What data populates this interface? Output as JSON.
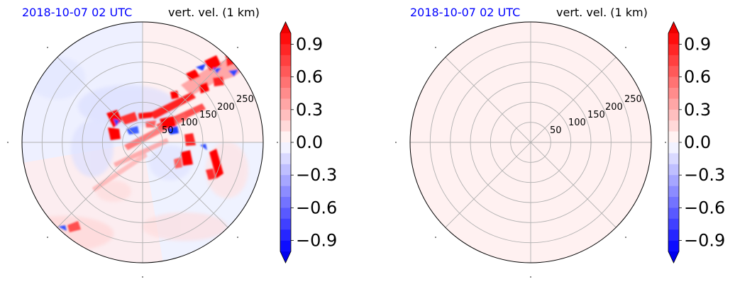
{
  "panels": [
    {
      "time_label": "2018-10-07 02 UTC",
      "field_label": "vert. vel. (1 km)",
      "state": "storm structure",
      "background_value": 0.03
    },
    {
      "time_label": "2018-10-07 02 UTC",
      "field_label": "vert. vel. (1 km)",
      "state": "uniform field",
      "background_value": 0.03
    }
  ],
  "colors": {
    "time_label": "#0000ff",
    "field_label": "#000000",
    "colormap_low": "#0000ff",
    "colormap_mid": "#ffffff",
    "colormap_high": "#ff0000",
    "grid": "#b0b0b0"
  },
  "chart_data": [
    {
      "type": "heatmap",
      "projection": "polar",
      "radial_ticks": [
        "50",
        "100",
        "150",
        "200",
        "250"
      ],
      "radial_values": [
        50,
        100,
        150,
        200,
        250
      ],
      "radial_max": 300,
      "angular_grid_deg": [
        0,
        45,
        90,
        135,
        180,
        225,
        270,
        315
      ],
      "colorbar": {
        "ticks": [
          "−0.9",
          "−0.6",
          "−0.3",
          "0.0",
          "0.3",
          "0.6",
          "0.9"
        ],
        "tick_values": [
          -0.9,
          -0.6,
          -0.3,
          0.0,
          0.3,
          0.6,
          0.9
        ],
        "vmin": -1.0,
        "vmax": 1.0,
        "levels": 20,
        "extend": "both"
      },
      "features": [
        {
          "r": 70,
          "theta_deg": 160,
          "value": 0.9
        },
        {
          "r": 40,
          "theta_deg": 40,
          "value": 0.8
        },
        {
          "r": 110,
          "theta_deg": 52,
          "value": 0.95
        },
        {
          "r": 165,
          "theta_deg": 55,
          "value": 0.9
        },
        {
          "r": 175,
          "theta_deg": 48,
          "value": -0.6
        },
        {
          "r": 120,
          "theta_deg": 20,
          "value": 0.7
        },
        {
          "r": 110,
          "theta_deg": -35,
          "value": 0.9
        },
        {
          "r": 160,
          "theta_deg": -20,
          "value": 0.8
        },
        {
          "r": 85,
          "theta_deg": 10,
          "value": -0.5
        }
      ]
    },
    {
      "type": "heatmap",
      "projection": "polar",
      "radial_ticks": [
        "50",
        "100",
        "150",
        "200",
        "250"
      ],
      "radial_values": [
        50,
        100,
        150,
        200,
        250
      ],
      "radial_max": 300,
      "angular_grid_deg": [
        0,
        45,
        90,
        135,
        180,
        225,
        270,
        315
      ],
      "colorbar": {
        "ticks": [
          "−0.9",
          "−0.6",
          "−0.3",
          "0.0",
          "0.3",
          "0.6",
          "0.9"
        ],
        "tick_values": [
          -0.9,
          -0.6,
          -0.3,
          0.0,
          0.3,
          0.6,
          0.9
        ],
        "vmin": -1.0,
        "vmax": 1.0,
        "levels": 20,
        "extend": "both"
      },
      "features": []
    }
  ]
}
